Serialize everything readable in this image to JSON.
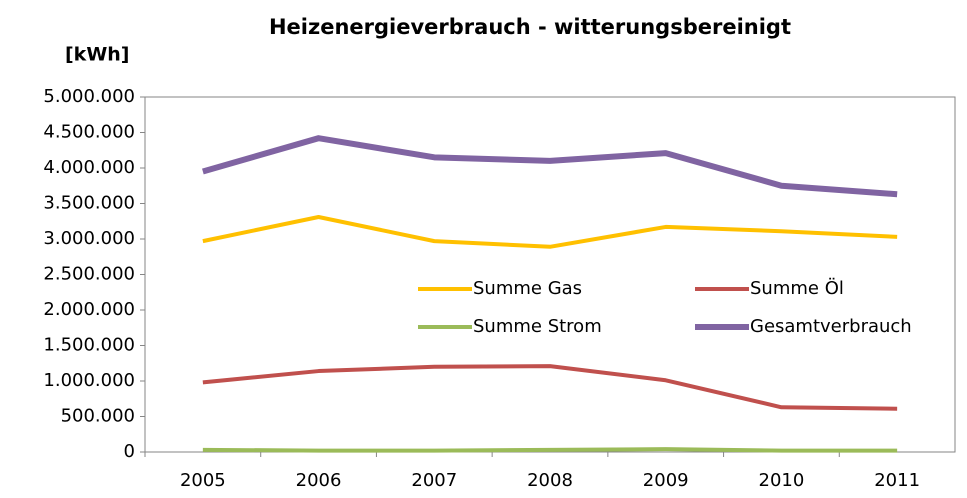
{
  "chart_data": {
    "type": "line",
    "title": "Heizenergieverbrauch - witterungsbereinigt",
    "y_label": "[kWh]",
    "categories": [
      "2005",
      "2006",
      "2007",
      "2008",
      "2009",
      "2010",
      "2011"
    ],
    "series": [
      {
        "name": "Summe Gas",
        "color": "#FFC000",
        "values": [
          2970000,
          3310000,
          2970000,
          2890000,
          3170000,
          3110000,
          3030000
        ]
      },
      {
        "name": "Summe Öl",
        "color": "#C0504D",
        "values": [
          980000,
          1140000,
          1200000,
          1210000,
          1010000,
          630000,
          610000
        ]
      },
      {
        "name": "Summe Strom",
        "color": "#9BBB59",
        "values": [
          30000,
          20000,
          20000,
          30000,
          40000,
          20000,
          20000
        ]
      },
      {
        "name": "Gesamtverbrauch",
        "color": "#8064A2",
        "values": [
          3950000,
          4420000,
          4150000,
          4100000,
          4210000,
          3750000,
          3630000
        ]
      }
    ],
    "ylim": [
      0,
      5000000
    ],
    "yticks": [
      0,
      {
        "value": 500000,
        "label": "500.000"
      },
      {
        "value": 1000000,
        "label": "1.000.000"
      },
      {
        "value": 1500000,
        "label": "1.500.000"
      },
      {
        "value": 2000000,
        "label": "2.000.000"
      },
      {
        "value": 2500000,
        "label": "2.500.000"
      },
      {
        "value": 3000000,
        "label": "3.000.000"
      },
      {
        "value": 3500000,
        "label": "3.500.000"
      },
      {
        "value": 4000000,
        "label": "4.000.000"
      },
      {
        "value": 4500000,
        "label": "4.500.000"
      },
      {
        "value": 5000000,
        "label": "5.000.000"
      }
    ],
    "grid": false
  }
}
